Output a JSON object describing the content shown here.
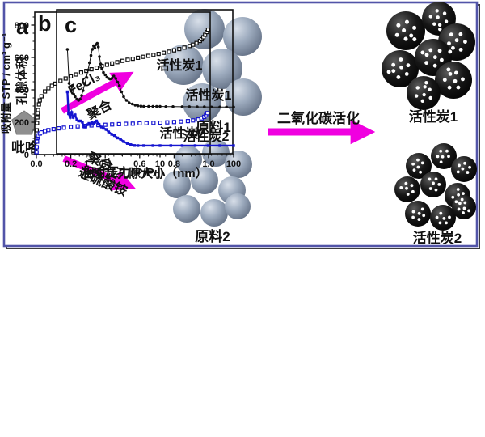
{
  "colors": {
    "arrow_magenta": "#f000e0",
    "panel_border": "#5254a8",
    "series1_black": "#111111",
    "series2_blue": "#1515d0",
    "sphere_gray": "#9dabbe",
    "carbon_black": "#0d0d0d"
  },
  "panel_a": {
    "label": "a",
    "monomer": "吡咯",
    "route1": {
      "reagent": "FeCl₃",
      "process": "聚合",
      "product": "原料1"
    },
    "route2": {
      "process": "聚合",
      "reagent": "过硫酸铵",
      "product": "原料2"
    },
    "activation_label": "二氧化碳活化",
    "product1": "活性炭1",
    "product2": "活性炭2"
  },
  "chart_data": [
    {
      "id": "b",
      "type": "scatter",
      "panel_label": "b",
      "xlabel": "相对压力(P/P₀)",
      "ylabel": "吸附量 STP / cm³ g⁻¹",
      "xlim": [
        0,
        1.02
      ],
      "ylim": [
        0,
        880
      ],
      "grid": false,
      "xtick_values": [
        0,
        0.2,
        0.4,
        0.6,
        0.8,
        1.0
      ],
      "xtick_labels": [
        "0.0",
        "0.2",
        "0.4",
        "0.6",
        "0.8",
        "1.0"
      ],
      "ytick_values": [
        0,
        200,
        400,
        600,
        800
      ],
      "ytick_labels": [
        "0",
        "200",
        "400",
        "600",
        "800"
      ],
      "series": [
        {
          "name": "活性炭1",
          "color": "#111111",
          "marker": "open-square",
          "x": [
            0.001,
            0.002,
            0.004,
            0.006,
            0.008,
            0.01,
            0.015,
            0.02,
            0.03,
            0.05,
            0.07,
            0.09,
            0.11,
            0.14,
            0.17,
            0.2,
            0.23,
            0.26,
            0.29,
            0.32,
            0.35,
            0.38,
            0.41,
            0.44,
            0.47,
            0.5,
            0.53,
            0.56,
            0.59,
            0.62,
            0.65,
            0.68,
            0.71,
            0.74,
            0.77,
            0.8,
            0.83,
            0.86,
            0.89,
            0.91,
            0.93,
            0.95,
            0.96,
            0.97,
            0.98,
            0.99,
            0.997
          ],
          "y": [
            100,
            150,
            195,
            230,
            255,
            275,
            310,
            335,
            360,
            390,
            410,
            425,
            438,
            455,
            470,
            483,
            495,
            507,
            517,
            527,
            537,
            547,
            555,
            563,
            571,
            579,
            586,
            592,
            598,
            604,
            610,
            616,
            622,
            629,
            636,
            644,
            652,
            661,
            671,
            679,
            689,
            702,
            712,
            725,
            740,
            757,
            772
          ]
        },
        {
          "name": "活性炭2",
          "color": "#1515d0",
          "marker": "open-square",
          "x": [
            0.001,
            0.002,
            0.004,
            0.007,
            0.01,
            0.02,
            0.03,
            0.05,
            0.07,
            0.1,
            0.13,
            0.16,
            0.2,
            0.24,
            0.28,
            0.32,
            0.36,
            0.4,
            0.44,
            0.48,
            0.52,
            0.56,
            0.6,
            0.64,
            0.68,
            0.72,
            0.76,
            0.8,
            0.84,
            0.88,
            0.91,
            0.94,
            0.96,
            0.975,
            0.985,
            0.993
          ],
          "y": [
            15,
            45,
            80,
            105,
            118,
            130,
            137,
            145,
            151,
            157,
            162,
            166,
            170,
            174,
            177,
            180,
            182,
            184,
            186,
            188,
            190,
            191,
            193,
            194,
            196,
            197,
            199,
            201,
            204,
            207,
            211,
            217,
            224,
            233,
            244,
            256
          ]
        }
      ]
    },
    {
      "id": "c",
      "type": "line",
      "panel_label": "c",
      "xlabel": "活性炭孔隙大小（nm）",
      "ylabel": "孔隙体积",
      "xscale": "log",
      "xlim": [
        0.4,
        100
      ],
      "ylim_relative": [
        0,
        1
      ],
      "grid": false,
      "xtick_values": [
        1,
        10,
        100
      ],
      "xtick_labels": [
        "1",
        "10",
        "100"
      ],
      "series": [
        {
          "name": "活性炭1",
          "color": "#111111",
          "marker": "dot",
          "x": [
            0.55,
            0.58,
            0.61,
            0.64,
            0.67,
            0.7,
            0.74,
            0.78,
            0.82,
            0.86,
            0.9,
            0.95,
            1.0,
            1.05,
            1.1,
            1.15,
            1.2,
            1.25,
            1.3,
            1.35,
            1.4,
            1.45,
            1.5,
            1.56,
            1.62,
            1.7,
            1.8,
            1.9,
            2.0,
            2.1,
            2.2,
            2.35,
            2.5,
            2.65,
            2.8,
            3.0,
            3.2,
            3.5,
            3.8,
            4.2,
            4.6,
            5.0,
            5.5,
            6.0,
            7.0,
            8.0,
            9.0,
            10,
            12,
            15,
            20,
            25,
            32,
            40,
            50,
            65,
            80,
            100
          ],
          "y": [
            0.86,
            0.58,
            0.52,
            0.56,
            0.49,
            0.47,
            0.45,
            0.44,
            0.45,
            0.48,
            0.52,
            0.58,
            0.63,
            0.69,
            0.75,
            0.81,
            0.86,
            0.89,
            0.87,
            0.9,
            0.91,
            0.88,
            0.8,
            0.74,
            0.7,
            0.67,
            0.65,
            0.63,
            0.62,
            0.615,
            0.62,
            0.64,
            0.62,
            0.59,
            0.56,
            0.51,
            0.47,
            0.44,
            0.42,
            0.41,
            0.4,
            0.395,
            0.392,
            0.39,
            0.39,
            0.39,
            0.39,
            0.39,
            0.388,
            0.388,
            0.387,
            0.387,
            0.386,
            0.386,
            0.385,
            0.385,
            0.385,
            0.385
          ]
        },
        {
          "name": "活性炭2",
          "color": "#1515d0",
          "marker": "square",
          "x": [
            0.55,
            0.57,
            0.6,
            0.63,
            0.66,
            0.7,
            0.74,
            0.78,
            0.83,
            0.88,
            0.93,
            0.98,
            1.03,
            1.08,
            1.13,
            1.18,
            1.24,
            1.3,
            1.37,
            1.44,
            1.52,
            1.6,
            1.7,
            1.85,
            2.0,
            2.2,
            2.4,
            2.65,
            2.9,
            3.2,
            3.6,
            4.0,
            4.5,
            5.0,
            6.0,
            8.0,
            10,
            14,
            20,
            30,
            45,
            65,
            100
          ],
          "y": [
            0.51,
            0.33,
            0.3,
            0.34,
            0.3,
            0.32,
            0.28,
            0.27,
            0.27,
            0.26,
            0.22,
            0.22,
            0.24,
            0.25,
            0.24,
            0.26,
            0.25,
            0.26,
            0.27,
            0.25,
            0.23,
            0.22,
            0.21,
            0.2,
            0.18,
            0.16,
            0.15,
            0.13,
            0.12,
            0.1,
            0.085,
            0.075,
            0.068,
            0.067,
            0.067,
            0.067,
            0.067,
            0.067,
            0.067,
            0.067,
            0.067,
            0.067,
            0.067
          ]
        }
      ]
    }
  ]
}
